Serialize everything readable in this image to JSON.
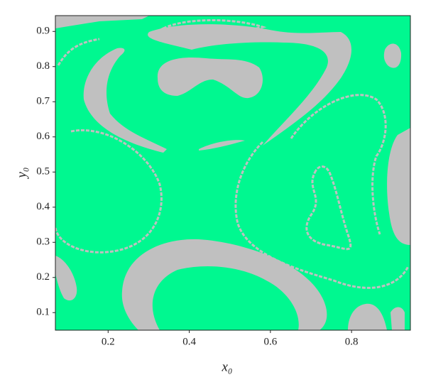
{
  "chart_data": {
    "type": "region-map",
    "xlabel": "x₀",
    "ylabel": "y₀",
    "xlim": [
      0.07,
      0.945
    ],
    "ylim": [
      0.05,
      0.945
    ],
    "xticks": [
      0.2,
      0.4,
      0.6,
      0.8
    ],
    "yticks": [
      0.1,
      0.2,
      0.3,
      0.4,
      0.5,
      0.6,
      0.7,
      0.8,
      0.9
    ],
    "background_color": "#00f890",
    "region_color": "#c0c0c0"
  }
}
